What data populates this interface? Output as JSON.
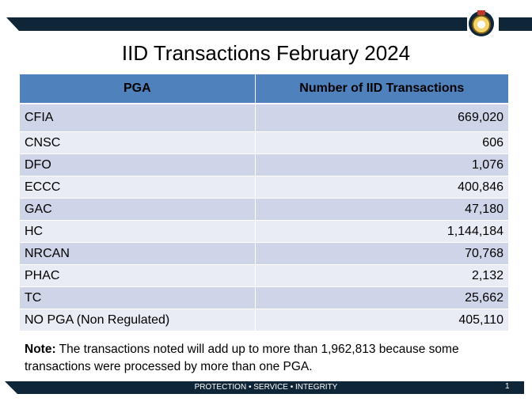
{
  "title": "IID Transactions February 2024",
  "table": {
    "header": [
      "PGA",
      "Number of IID Transactions"
    ],
    "rows": [
      [
        "CFIA",
        "669,020"
      ],
      [
        "CNSC",
        "606"
      ],
      [
        "DFO",
        "1,076"
      ],
      [
        "ECCC",
        "400,846"
      ],
      [
        "GAC",
        "47,180"
      ],
      [
        "HC",
        "1,144,184"
      ],
      [
        "NRCAN",
        "70,768"
      ],
      [
        "PHAC",
        "2,132"
      ],
      [
        "TC",
        "25,662"
      ],
      [
        "NO PGA (Non Regulated)",
        "405,110"
      ]
    ]
  },
  "note": {
    "label": "Note:",
    "text": "The transactions noted will add up to more than 1,962,813 because some transactions were processed by more than one PGA."
  },
  "footer": {
    "motto": "PROTECTION • SERVICE • INTEGRITY",
    "page": "1"
  }
}
